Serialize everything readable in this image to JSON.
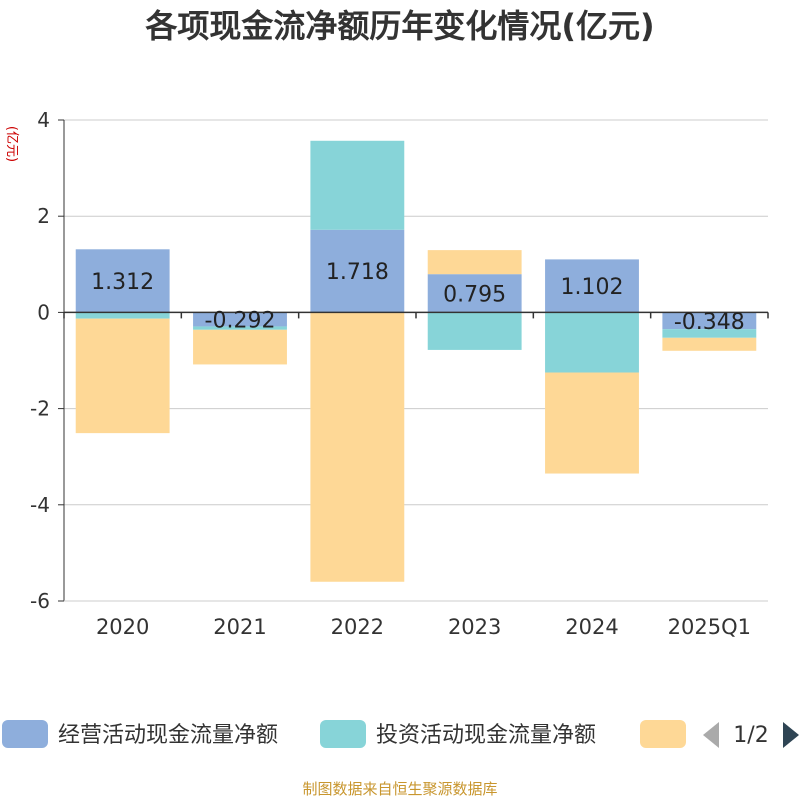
{
  "chart_data": {
    "type": "bar",
    "stacked": true,
    "title": "各项现金流净额历年变化情况(亿元)",
    "ylabel": "(亿元)",
    "xlabel": "",
    "categories": [
      "2020",
      "2021",
      "2022",
      "2023",
      "2024",
      "2025Q1"
    ],
    "ylim": [
      -6,
      4
    ],
    "yticks": [
      4,
      2,
      0,
      -2,
      -4,
      -6
    ],
    "grid": true,
    "series": [
      {
        "name": "经营活动现金流量净额",
        "color": "#8eaedc",
        "values": [
          1.312,
          -0.292,
          1.718,
          0.795,
          1.102,
          -0.348
        ],
        "labels": [
          "1.312",
          "-0.292",
          "1.718",
          "0.795",
          "1.102",
          "-0.348"
        ]
      },
      {
        "name": "投资活动现金流量净额",
        "color": "#87d4d8",
        "values": [
          -0.13,
          -0.07,
          1.85,
          -0.78,
          -1.25,
          -0.18
        ]
      },
      {
        "name": "",
        "color": "#fed896",
        "values": [
          -2.38,
          -0.72,
          -5.6,
          0.5,
          -2.1,
          -0.27
        ]
      }
    ],
    "legend": {
      "position": "bottom",
      "page": "1/2"
    }
  },
  "footer": {
    "source": "制图数据来自恒生聚源数据库"
  }
}
